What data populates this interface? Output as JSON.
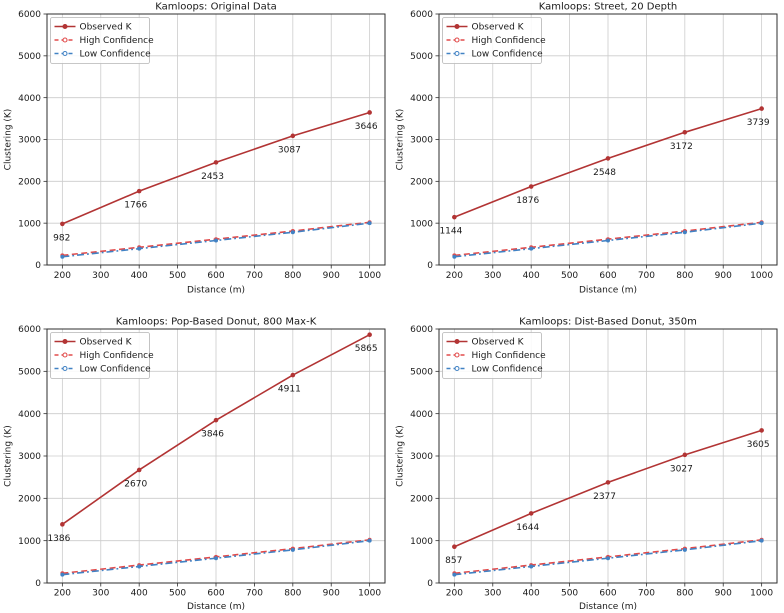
{
  "figure": {
    "background": "#ffffff",
    "rows": 2,
    "cols": 2
  },
  "colors": {
    "observed": "#b23434",
    "high_confidence": "#e24b4b",
    "low_confidence": "#4182c4",
    "grid": "#cccccc",
    "spine": "#2e2e2e",
    "text": "#1a1a1a",
    "legend_border": "#b5b5b5",
    "legend_background": "#ffffff"
  },
  "axes": {
    "xlabel": "Distance (m)",
    "ylabel": "Clustering (K)",
    "xlim": [
      160,
      1040
    ],
    "ylim": [
      0,
      6000
    ],
    "xticks": [
      200,
      300,
      400,
      500,
      600,
      700,
      800,
      900,
      1000
    ],
    "yticks": [
      0,
      1000,
      2000,
      3000,
      4000,
      5000,
      6000
    ],
    "grid": true,
    "legend_position": "upper-left"
  },
  "chart_data": [
    {
      "type": "line",
      "title": "Kamloops: Original Data",
      "xlabel": "Distance (m)",
      "ylabel": "Clustering (K)",
      "x": [
        200,
        400,
        600,
        800,
        1000
      ],
      "series": [
        {
          "name": "Observed K",
          "color": "#b23434",
          "dash": "",
          "marker": "filled",
          "annotate": true,
          "values": [
            982,
            1766,
            2453,
            3087,
            3646
          ]
        },
        {
          "name": "High Confidence",
          "color": "#e24b4b",
          "dash": "6 3.5",
          "marker": "open",
          "annotate": false,
          "values": [
            230,
            423,
            617,
            812,
            1021
          ]
        },
        {
          "name": "Low Confidence",
          "color": "#4182c4",
          "dash": "7 3 1.8 3",
          "marker": "open",
          "annotate": false,
          "values": [
            197,
            391,
            586,
            783,
            1000
          ]
        }
      ]
    },
    {
      "type": "line",
      "title": "Kamloops: Street, 20 Depth",
      "xlabel": "Distance (m)",
      "ylabel": "Clustering (K)",
      "x": [
        200,
        400,
        600,
        800,
        1000
      ],
      "series": [
        {
          "name": "Observed K",
          "color": "#b23434",
          "dash": "",
          "marker": "filled",
          "annotate": true,
          "values": [
            1144,
            1876,
            2548,
            3172,
            3739
          ]
        },
        {
          "name": "High Confidence",
          "color": "#e24b4b",
          "dash": "6 3.5",
          "marker": "open",
          "annotate": false,
          "values": [
            230,
            423,
            617,
            812,
            1021
          ]
        },
        {
          "name": "Low Confidence",
          "color": "#4182c4",
          "dash": "7 3 1.8 3",
          "marker": "open",
          "annotate": false,
          "values": [
            197,
            391,
            586,
            783,
            1000
          ]
        }
      ]
    },
    {
      "type": "line",
      "title": "Kamloops: Pop-Based Donut, 800 Max-K",
      "xlabel": "Distance (m)",
      "ylabel": "Clustering (K)",
      "x": [
        200,
        400,
        600,
        800,
        1000
      ],
      "series": [
        {
          "name": "Observed K",
          "color": "#b23434",
          "dash": "",
          "marker": "filled",
          "annotate": true,
          "values": [
            1386,
            2670,
            3846,
            4911,
            5865
          ]
        },
        {
          "name": "High Confidence",
          "color": "#e24b4b",
          "dash": "6 3.5",
          "marker": "open",
          "annotate": false,
          "values": [
            230,
            423,
            617,
            812,
            1021
          ]
        },
        {
          "name": "Low Confidence",
          "color": "#4182c4",
          "dash": "7 3 1.8 3",
          "marker": "open",
          "annotate": false,
          "values": [
            197,
            391,
            586,
            783,
            1000
          ]
        }
      ]
    },
    {
      "type": "line",
      "title": "Kamloops: Dist-Based Donut, 350m",
      "xlabel": "Distance (m)",
      "ylabel": "Clustering (K)",
      "x": [
        200,
        400,
        600,
        800,
        1000
      ],
      "series": [
        {
          "name": "Observed K",
          "color": "#b23434",
          "dash": "",
          "marker": "filled",
          "annotate": true,
          "values": [
            857,
            1644,
            2377,
            3027,
            3605
          ]
        },
        {
          "name": "High Confidence",
          "color": "#e24b4b",
          "dash": "6 3.5",
          "marker": "open",
          "annotate": false,
          "values": [
            230,
            423,
            617,
            812,
            1021
          ]
        },
        {
          "name": "Low Confidence",
          "color": "#4182c4",
          "dash": "7 3 1.8 3",
          "marker": "open",
          "annotate": false,
          "values": [
            197,
            391,
            586,
            783,
            1000
          ]
        }
      ]
    }
  ],
  "legend": {
    "items": [
      "Observed K",
      "High Confidence",
      "Low Confidence"
    ]
  }
}
